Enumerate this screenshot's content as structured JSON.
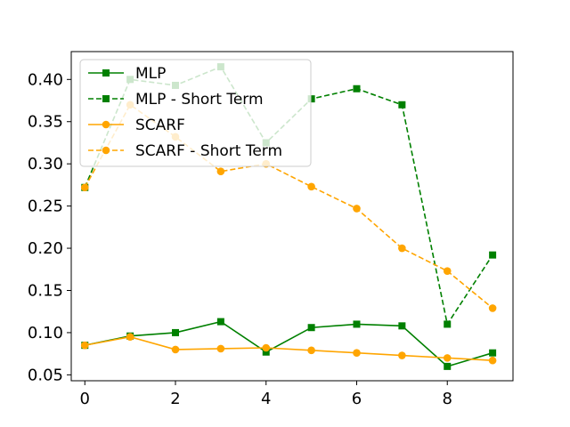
{
  "chart_data": {
    "type": "line",
    "title": "",
    "xlabel": "",
    "ylabel": "",
    "x": [
      0,
      1,
      2,
      3,
      4,
      5,
      6,
      7,
      8,
      9
    ],
    "xlim": [
      -0.3,
      9.45
    ],
    "ylim": [
      0.043,
      0.433
    ],
    "xticks": [
      0,
      2,
      4,
      6,
      8
    ],
    "yticks": [
      0.05,
      0.1,
      0.15,
      0.2,
      0.25,
      0.3,
      0.35,
      0.4
    ],
    "ytick_labels": [
      "0.05",
      "0.10",
      "0.15",
      "0.20",
      "0.25",
      "0.30",
      "0.35",
      "0.40"
    ],
    "grid": false,
    "legend_position": "top-left",
    "series": [
      {
        "name": "MLP",
        "color": "#008000",
        "dash": "solid",
        "marker": "square",
        "values": [
          0.085,
          0.096,
          0.1,
          0.113,
          0.077,
          0.106,
          0.11,
          0.108,
          0.06,
          0.076
        ]
      },
      {
        "name": "MLP - Short Term",
        "color": "#008000",
        "dash": "dashed",
        "marker": "square",
        "values": [
          0.272,
          0.4,
          0.393,
          0.415,
          0.325,
          0.377,
          0.389,
          0.37,
          0.11,
          0.192
        ]
      },
      {
        "name": "SCARF",
        "color": "#FFA500",
        "dash": "solid",
        "marker": "circle",
        "values": [
          0.085,
          0.095,
          0.08,
          0.081,
          0.082,
          0.079,
          0.076,
          0.073,
          0.07,
          0.067
        ]
      },
      {
        "name": "SCARF - Short Term",
        "color": "#FFA500",
        "dash": "dashed",
        "marker": "circle",
        "values": [
          0.272,
          0.37,
          0.332,
          0.291,
          0.3,
          0.273,
          0.247,
          0.2,
          0.173,
          0.129
        ]
      }
    ]
  }
}
